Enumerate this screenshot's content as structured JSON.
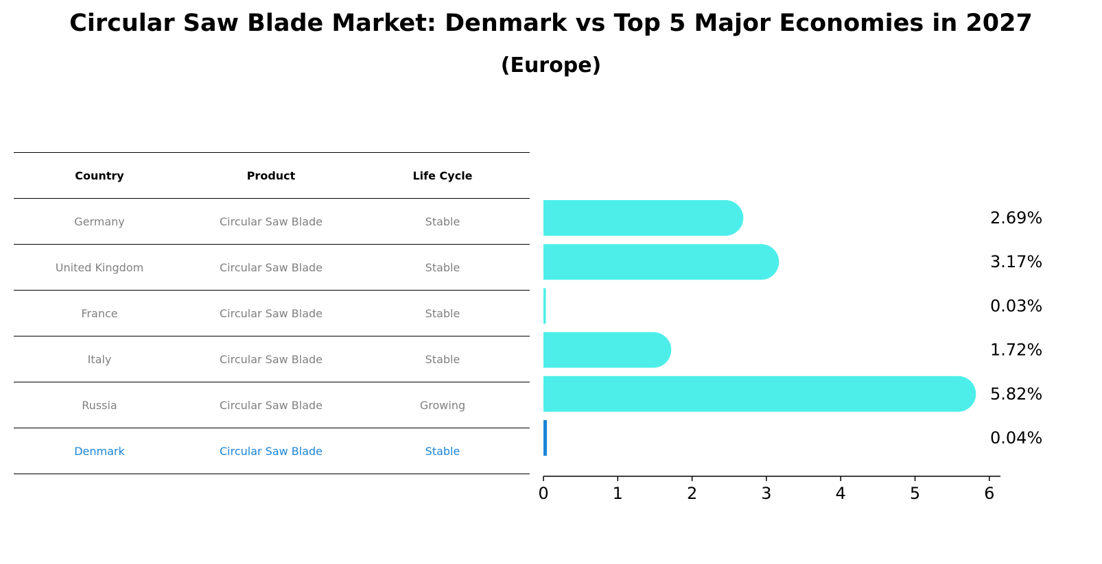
{
  "title": "Circular Saw Blade Market: Denmark vs Top 5 Major Economies in 2027",
  "subtitle": "(Europe)",
  "table": {
    "headers": [
      "Country",
      "Product",
      "Life Cycle"
    ],
    "rows": [
      {
        "country": "Germany",
        "product": "Circular Saw Blade",
        "life_cycle": "Stable"
      },
      {
        "country": "United Kingdom",
        "product": "Circular Saw Blade",
        "life_cycle": "Stable"
      },
      {
        "country": "France",
        "product": "Circular Saw Blade",
        "life_cycle": "Stable"
      },
      {
        "country": "Italy",
        "product": "Circular Saw Blade",
        "life_cycle": "Stable"
      },
      {
        "country": "Russia",
        "product": "Circular Saw Blade",
        "life_cycle": "Growing"
      },
      {
        "country": "Denmark",
        "product": "Circular Saw Blade",
        "life_cycle": "Stable"
      }
    ]
  },
  "chart_data": {
    "type": "bar",
    "orientation": "horizontal",
    "categories": [
      "Germany",
      "United Kingdom",
      "France",
      "Italy",
      "Russia",
      "Denmark"
    ],
    "values": [
      2.69,
      3.17,
      0.03,
      1.72,
      5.82,
      0.04
    ],
    "value_labels": [
      "2.69%",
      "3.17%",
      "0.03%",
      "1.72%",
      "5.82%",
      "0.04%"
    ],
    "xlim": [
      0,
      6.15
    ],
    "xticks": [
      "0",
      "1",
      "2",
      "3",
      "4",
      "5",
      "6"
    ],
    "highlight": "Denmark",
    "colors": {
      "bar": "#4deeea",
      "highlight": "#1a85d6"
    }
  }
}
